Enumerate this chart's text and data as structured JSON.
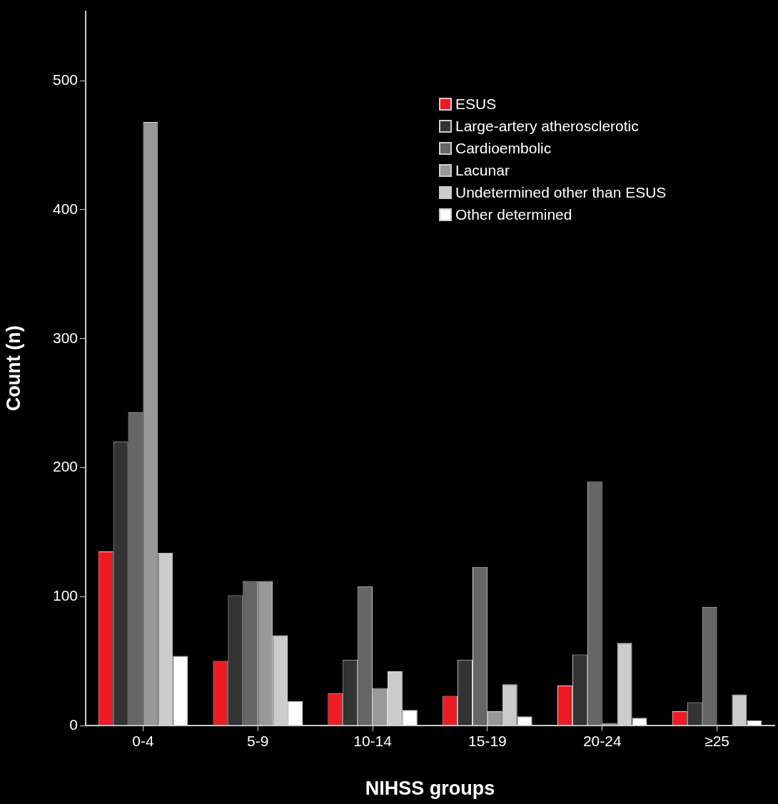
{
  "chart_data": {
    "type": "bar",
    "xlabel": "NIHSS groups",
    "ylabel": "Count (n)",
    "categories": [
      "0-4",
      "5-9",
      "10-14",
      "15-19",
      "20-24",
      "≥25"
    ],
    "series": [
      {
        "name": "ESUS",
        "color": "#ed1c24",
        "values": [
          135,
          50,
          25,
          23,
          31,
          11
        ]
      },
      {
        "name": "Large-artery atherosclerotic",
        "color": "#333333",
        "values": [
          220,
          101,
          51,
          51,
          55,
          18
        ]
      },
      {
        "name": "Cardioembolic",
        "color": "#666666",
        "values": [
          243,
          112,
          108,
          123,
          189,
          92
        ]
      },
      {
        "name": "Lacunar",
        "color": "#999999",
        "values": [
          468,
          112,
          29,
          11,
          2,
          0
        ]
      },
      {
        "name": "Undetermined other than ESUS",
        "color": "#cccccc",
        "values": [
          134,
          70,
          42,
          32,
          64,
          24
        ]
      },
      {
        "name": "Other determined",
        "color": "#ffffff",
        "values": [
          54,
          19,
          12,
          7,
          6,
          4
        ]
      }
    ],
    "ylim": [
      0,
      554
    ],
    "yticks": [
      0,
      100,
      200,
      300,
      400,
      500
    ],
    "grid": false,
    "legend": "top right"
  }
}
